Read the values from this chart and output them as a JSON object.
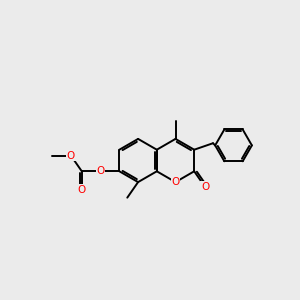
{
  "background_color": "#ebebeb",
  "bond_color": "#000000",
  "oxygen_color": "#ff0000",
  "bond_width": 1.4,
  "figsize": [
    3.0,
    3.0
  ],
  "dpi": 100,
  "xlim": [
    0.5,
    10.5
  ],
  "ylim": [
    2.5,
    8.5
  ]
}
